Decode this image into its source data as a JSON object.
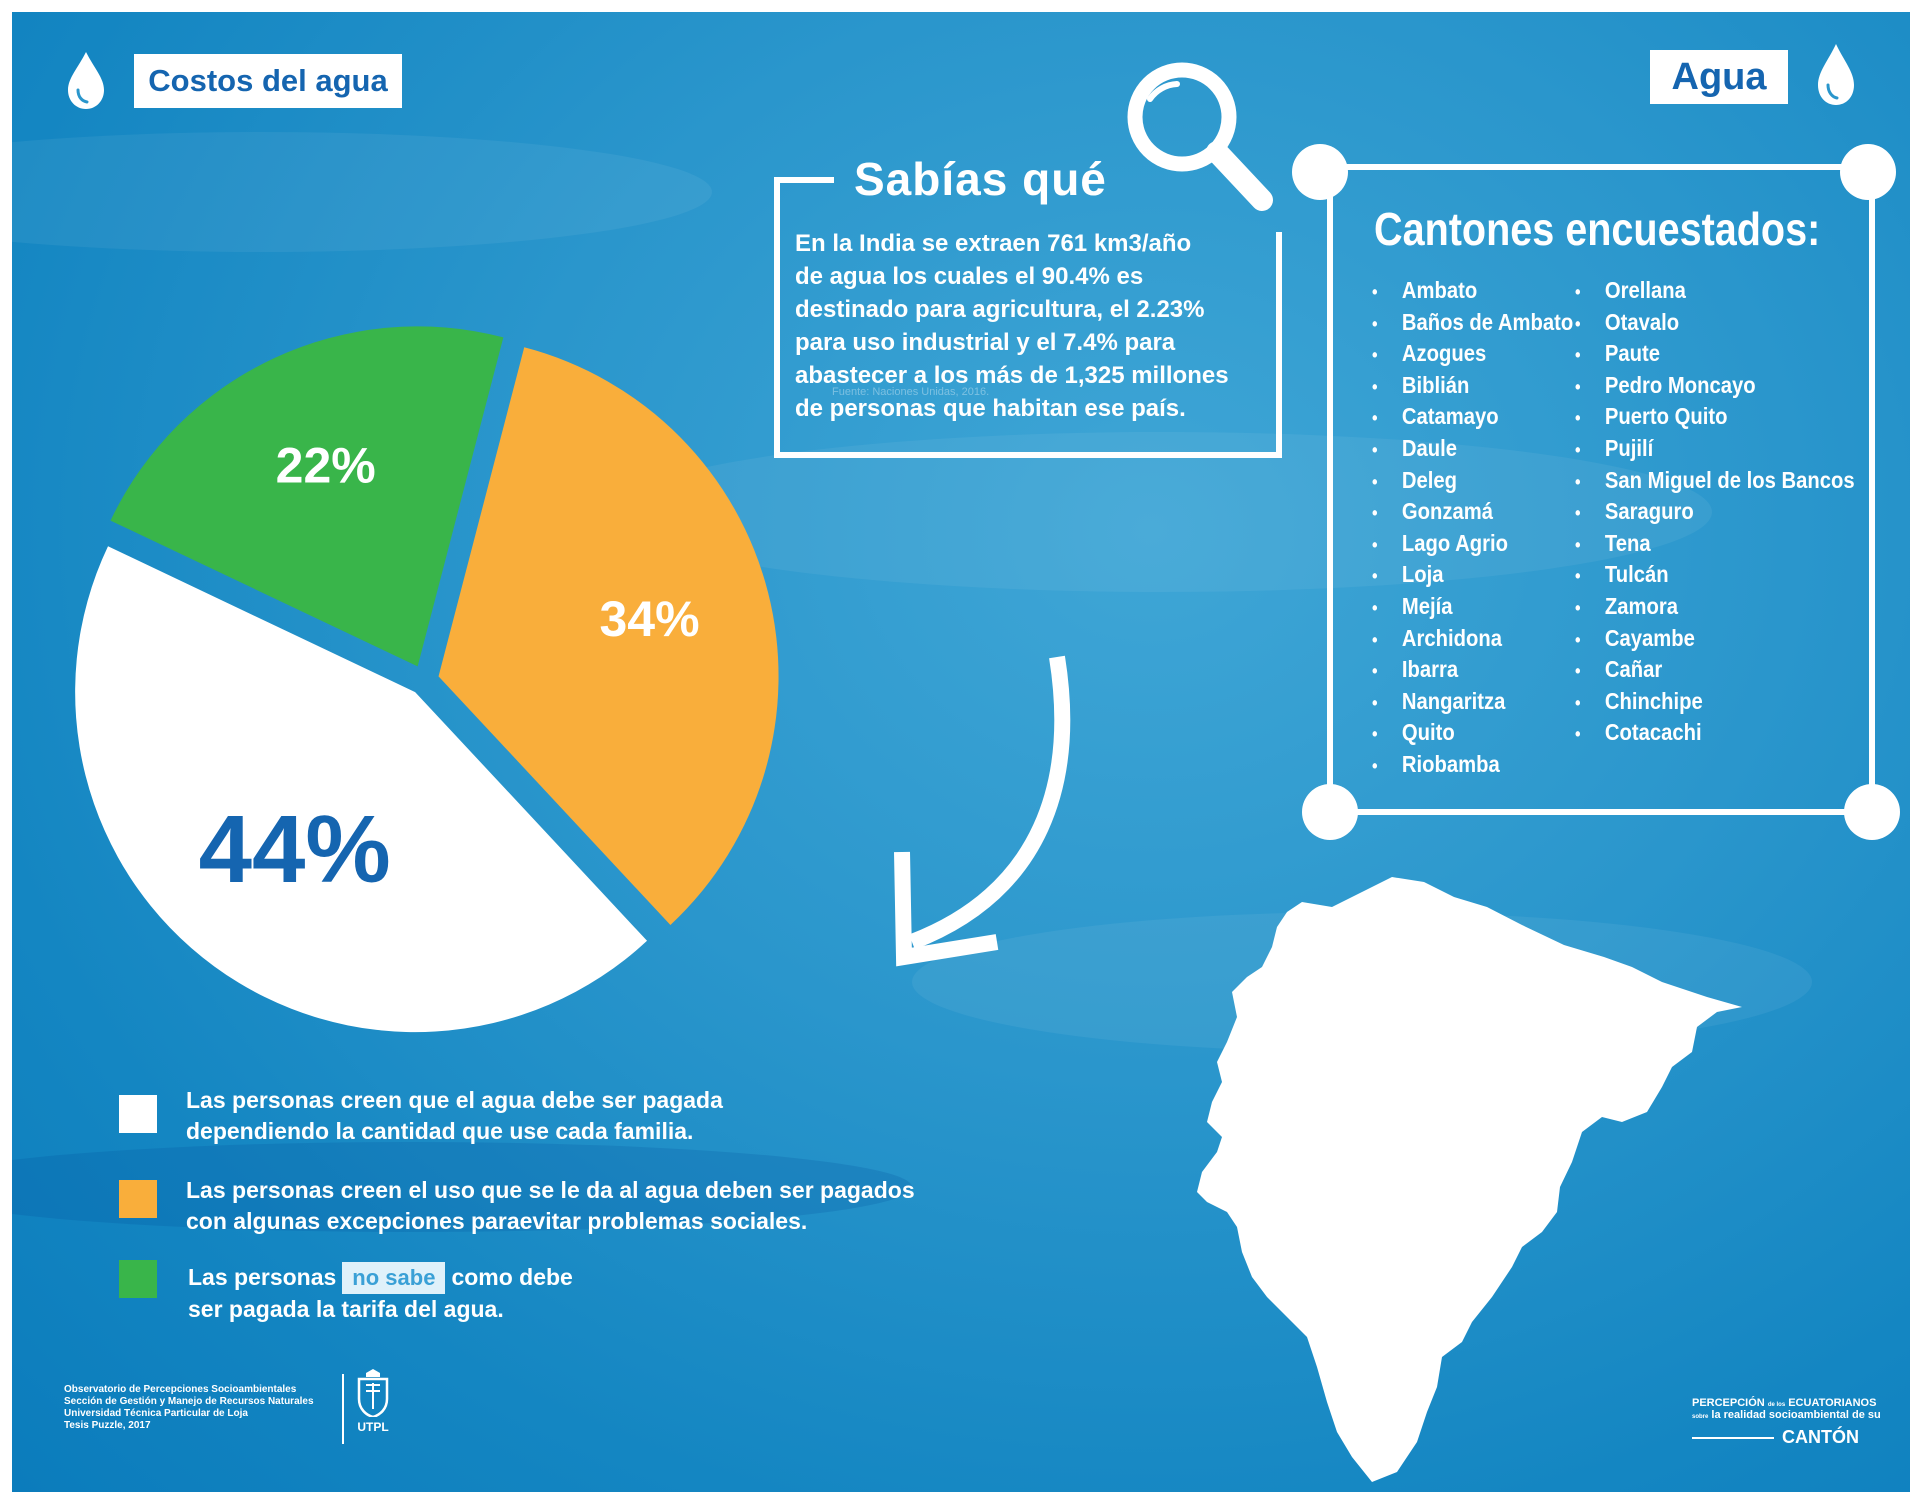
{
  "header": {
    "left_tag": "Costos del agua",
    "right_tag": "Agua"
  },
  "did_you_know": {
    "title": "Sabías qué",
    "text_lines": [
      "En la India se extraen 761 km3/año",
      "de agua los cuales el 90.4% es",
      "destinado para agricultura, el 2.23%",
      "para uso industrial y el 7.4% para",
      "abastecer a los más de 1,325 millones",
      "de personas que habitan ese país."
    ],
    "source": "Fuente: Naciones Unidas, 2016."
  },
  "cantones": {
    "title": "Cantones encuestados:",
    "column1": [
      "Ambato",
      "Baños de Ambato",
      "Azogues",
      "Biblián",
      "Catamayo",
      "Daule",
      "Deleg",
      "Gonzamá",
      "Lago Agrio",
      "Loja",
      "Mejía",
      "Archidona",
      "Ibarra",
      "Nangaritza",
      "Quito",
      "Riobamba"
    ],
    "column2": [
      "Orellana",
      "Otavalo",
      "Paute",
      "Pedro Moncayo",
      "Puerto Quito",
      "Pujilí",
      "San Miguel de los Bancos",
      "Saraguro",
      "Tena",
      "Tulcán",
      "Zamora",
      "Cayambe",
      "Cañar",
      "Chinchipe",
      "Cotacachi"
    ]
  },
  "chart_data": {
    "type": "pie",
    "title": "",
    "slices": [
      {
        "label": "44%",
        "value": 44,
        "color": "#ffffff",
        "label_color": "#1565b0"
      },
      {
        "label": "34%",
        "value": 34,
        "color": "#f9ae3b",
        "label_color": "#ffffff"
      },
      {
        "label": "22%",
        "value": 22,
        "color": "#39b54a",
        "label_color": "#ffffff"
      }
    ],
    "legend": [
      {
        "color": "#ffffff",
        "lines": [
          "Las personas creen que el agua debe ser pagada",
          "dependiendo la cantidad que use cada familia."
        ]
      },
      {
        "color": "#f9ae3b",
        "lines": [
          "Las personas creen el uso que se le da al agua deben ser pagados",
          "con algunas excepciones paraevitar problemas sociales."
        ]
      },
      {
        "color": "#39b54a",
        "line1_before": "Las personas",
        "highlight": "no sabe",
        "line1_after": "como debe",
        "line2": "ser pagada la tarifa del agua."
      }
    ]
  },
  "footer": {
    "left_lines": [
      "Observatorio de Percepciones Socioambientales",
      "Sección de Gestión y Manejo de Recursos Naturales",
      "Universidad Técnica Particular de Loja",
      "Tesis Puzzle, 2017"
    ],
    "logo_text": "UTPL",
    "brand_top_a": "PERCEPCIÓN",
    "brand_top_small": "de los",
    "brand_top_b": "ECUATORIANOS",
    "brand_mid_small": "sobre",
    "brand_mid": "la realidad socioambiental de su",
    "brand_bottom": "CANTÓN"
  },
  "colors": {
    "accent_blue": "#1565b0",
    "orange": "#f9ae3b",
    "green": "#39b54a",
    "background": "#1e8fc8"
  }
}
